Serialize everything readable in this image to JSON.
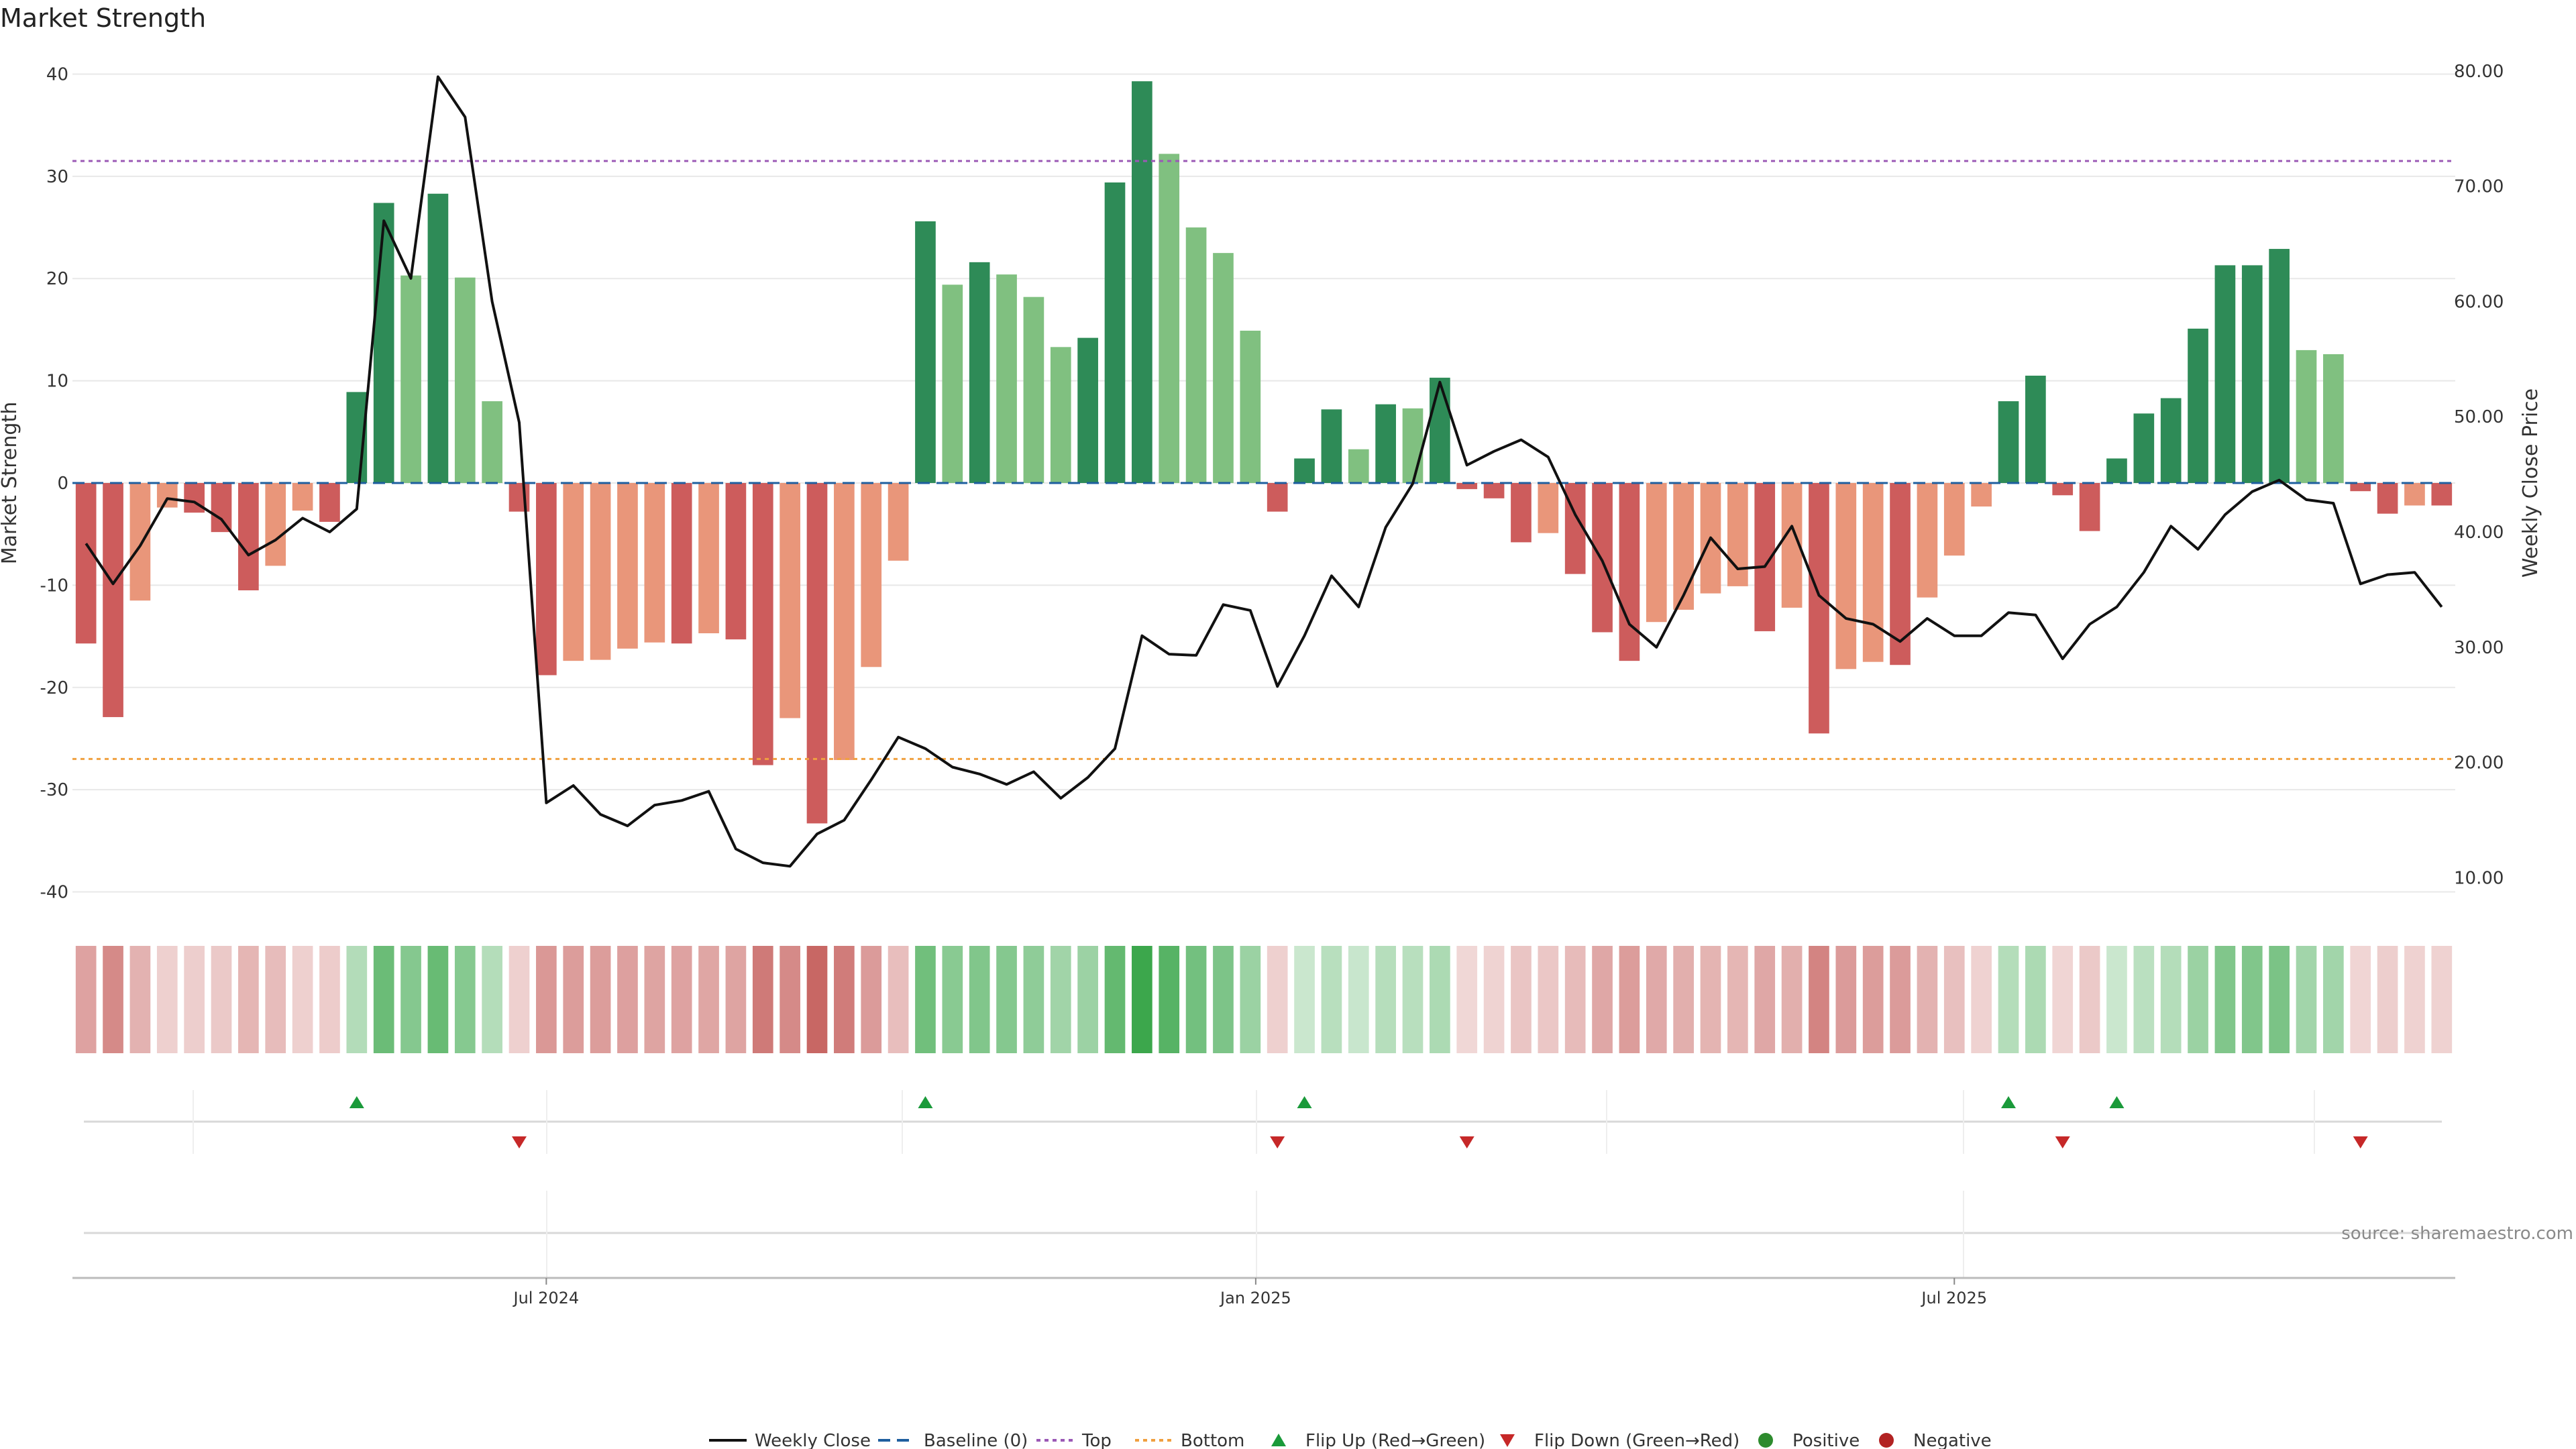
{
  "chart_data": {
    "type": "bar",
    "title": "Market Strength",
    "ylabel": "Market Strength",
    "y2label": "Weekly Close Price",
    "ylim": [
      -42,
      42
    ],
    "y2lim": [
      7.0,
      81.5
    ],
    "yticks": [
      40,
      30,
      20,
      10,
      0,
      -10,
      -20,
      -30,
      -40
    ],
    "y2ticks": [
      10,
      20,
      30,
      40,
      50,
      60,
      70,
      80
    ],
    "y2tick_labels": [
      "10.00",
      "20.00",
      "30.00",
      "40.00",
      "50.00",
      "60.00",
      "70.00",
      "80.00"
    ],
    "top_line": 31.5,
    "bottom_line": -27,
    "baseline": 0,
    "x_tick_labels": [
      {
        "label": "Jul 2024",
        "week": 17.5
      },
      {
        "label": "Jan 2025",
        "week": 43.7
      },
      {
        "label": "Jul 2025",
        "week": 69.5
      }
    ],
    "week_count": 88,
    "strength": [
      -15.7,
      -22.9,
      -11.5,
      -2.4,
      -2.9,
      -4.8,
      -10.5,
      -8.1,
      -2.7,
      -3.8,
      8.9,
      27.4,
      20.3,
      28.3,
      20.1,
      8.0,
      -2.8,
      -18.8,
      -17.4,
      -17.3,
      -16.2,
      -15.6,
      -15.7,
      -14.7,
      -15.3,
      -27.6,
      -23.0,
      -33.3,
      -27.1,
      -18.0,
      -7.6,
      25.6,
      19.4,
      21.6,
      20.4,
      18.2,
      13.3,
      14.2,
      29.4,
      39.3,
      32.2,
      25.0,
      22.5,
      14.9,
      -2.8,
      2.4,
      7.2,
      3.3,
      7.7,
      7.3,
      10.3,
      -0.6,
      -1.5,
      -5.8,
      -4.9,
      -8.9,
      -14.6,
      -17.4,
      -13.6,
      -12.4,
      -10.8,
      -10.1,
      -14.5,
      -12.2,
      -24.5,
      -18.2,
      -17.5,
      -17.8,
      -11.2,
      -7.1,
      -2.3,
      8.0,
      10.5,
      -1.2,
      -4.7,
      2.4,
      6.8,
      8.3,
      15.1,
      21.3,
      21.3,
      22.9,
      13.0,
      12.6,
      -0.8,
      -3.0,
      -2.2,
      -2.2
    ],
    "weekly_close": [
      39.0,
      35.5,
      38.8,
      42.9,
      42.6,
      41.1,
      38.0,
      39.3,
      41.2,
      40.0,
      42.0,
      67.0,
      62.0,
      79.5,
      76.0,
      60.0,
      49.5,
      16.5,
      18.0,
      15.5,
      14.5,
      16.3,
      16.7,
      17.5,
      12.5,
      11.3,
      11.0,
      13.8,
      15.0,
      18.5,
      22.2,
      21.2,
      19.6,
      19.0,
      18.1,
      19.2,
      16.9,
      18.7,
      21.2,
      31.0,
      29.4,
      29.3,
      33.7,
      33.2,
      26.6,
      31.0,
      36.2,
      33.5,
      40.4,
      44.2,
      53.0,
      45.8,
      47.0,
      48.0,
      46.5,
      41.5,
      37.5,
      32.0,
      30.0,
      34.5,
      39.5,
      36.8,
      37.0,
      40.5,
      34.5,
      32.5,
      32.0,
      30.5,
      32.5,
      31.0,
      31.0,
      33.0,
      32.8,
      29.0,
      32.0,
      33.5,
      36.5,
      40.5,
      38.5,
      41.5,
      43.5,
      44.5,
      42.8,
      42.5,
      35.5,
      36.3,
      36.5,
      33.5
    ],
    "flip_up_weeks": [
      10,
      31,
      45,
      71,
      75
    ],
    "flip_down_weeks": [
      16,
      44,
      51,
      73,
      84
    ],
    "legend": [
      "Weekly Close",
      "Baseline (0)",
      "Top",
      "Bottom",
      "Flip Up (Red→Green)",
      "Flip Down (Green→Red)",
      "Positive",
      "Negative"
    ],
    "colors": {
      "pos_strong": "#2e8b57",
      "pos_light": "#80c080",
      "neg_strong": "#cd5c5c",
      "neg_light": "#e9967a",
      "line": "#111111",
      "baseline": "#1f5f9f",
      "top": "#9b59b6",
      "bottom": "#f0a040",
      "flip_up": "#1a9a3a",
      "flip_down": "#c62828",
      "positive_dot": "#2e8b2e",
      "negative_dot": "#b22222",
      "heat_pos": "#3aa64a",
      "heat_neg": "#c0504d",
      "grid": "#e8e8e8"
    }
  },
  "source": "source: sharemaestro.com"
}
